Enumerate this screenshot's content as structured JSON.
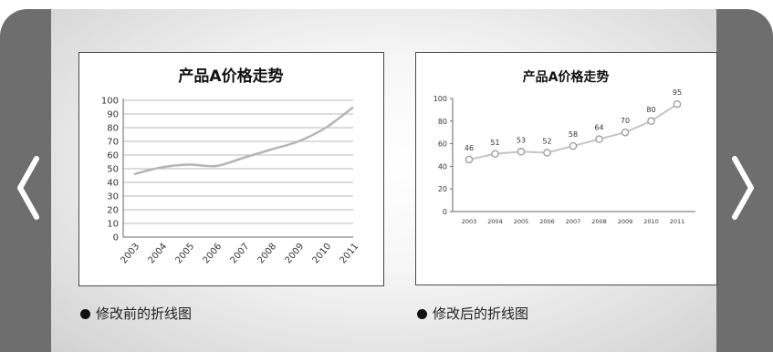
{
  "nav": {
    "prev_icon": "chevron-left-icon",
    "next_icon": "chevron-right-icon",
    "side_color": "#6e6e6e"
  },
  "captions": {
    "before": "修改前的折线图",
    "after": "修改后的折线图"
  },
  "chart_data": [
    {
      "type": "line",
      "title": "产品A价格走势",
      "x": [
        "2003",
        "2004",
        "2005",
        "2006",
        "2007",
        "2008",
        "2009",
        "2010",
        "2011"
      ],
      "series": [
        {
          "values": [
            46,
            51,
            53,
            52,
            58,
            64,
            70,
            80,
            95
          ]
        }
      ],
      "ylim": [
        0,
        100
      ],
      "yticks": [
        "0",
        "10",
        "20",
        "30",
        "40",
        "50",
        "60",
        "70",
        "80",
        "90",
        "100"
      ],
      "grid": true,
      "markers": false,
      "data_labels": false,
      "line_color": "#b5b5b5"
    },
    {
      "type": "line",
      "title": "产品A价格走势",
      "x": [
        "2003",
        "2004",
        "2005",
        "2006",
        "2007",
        "2008",
        "2009",
        "2010",
        "2011"
      ],
      "series": [
        {
          "values": [
            46,
            51,
            53,
            52,
            58,
            64,
            70,
            80,
            95
          ]
        }
      ],
      "ylim": [
        0,
        100
      ],
      "yticks": [
        "0",
        "20",
        "40",
        "60",
        "80",
        "100"
      ],
      "grid": false,
      "markers": true,
      "data_labels": true,
      "line_color": "#c4c4c4"
    }
  ]
}
